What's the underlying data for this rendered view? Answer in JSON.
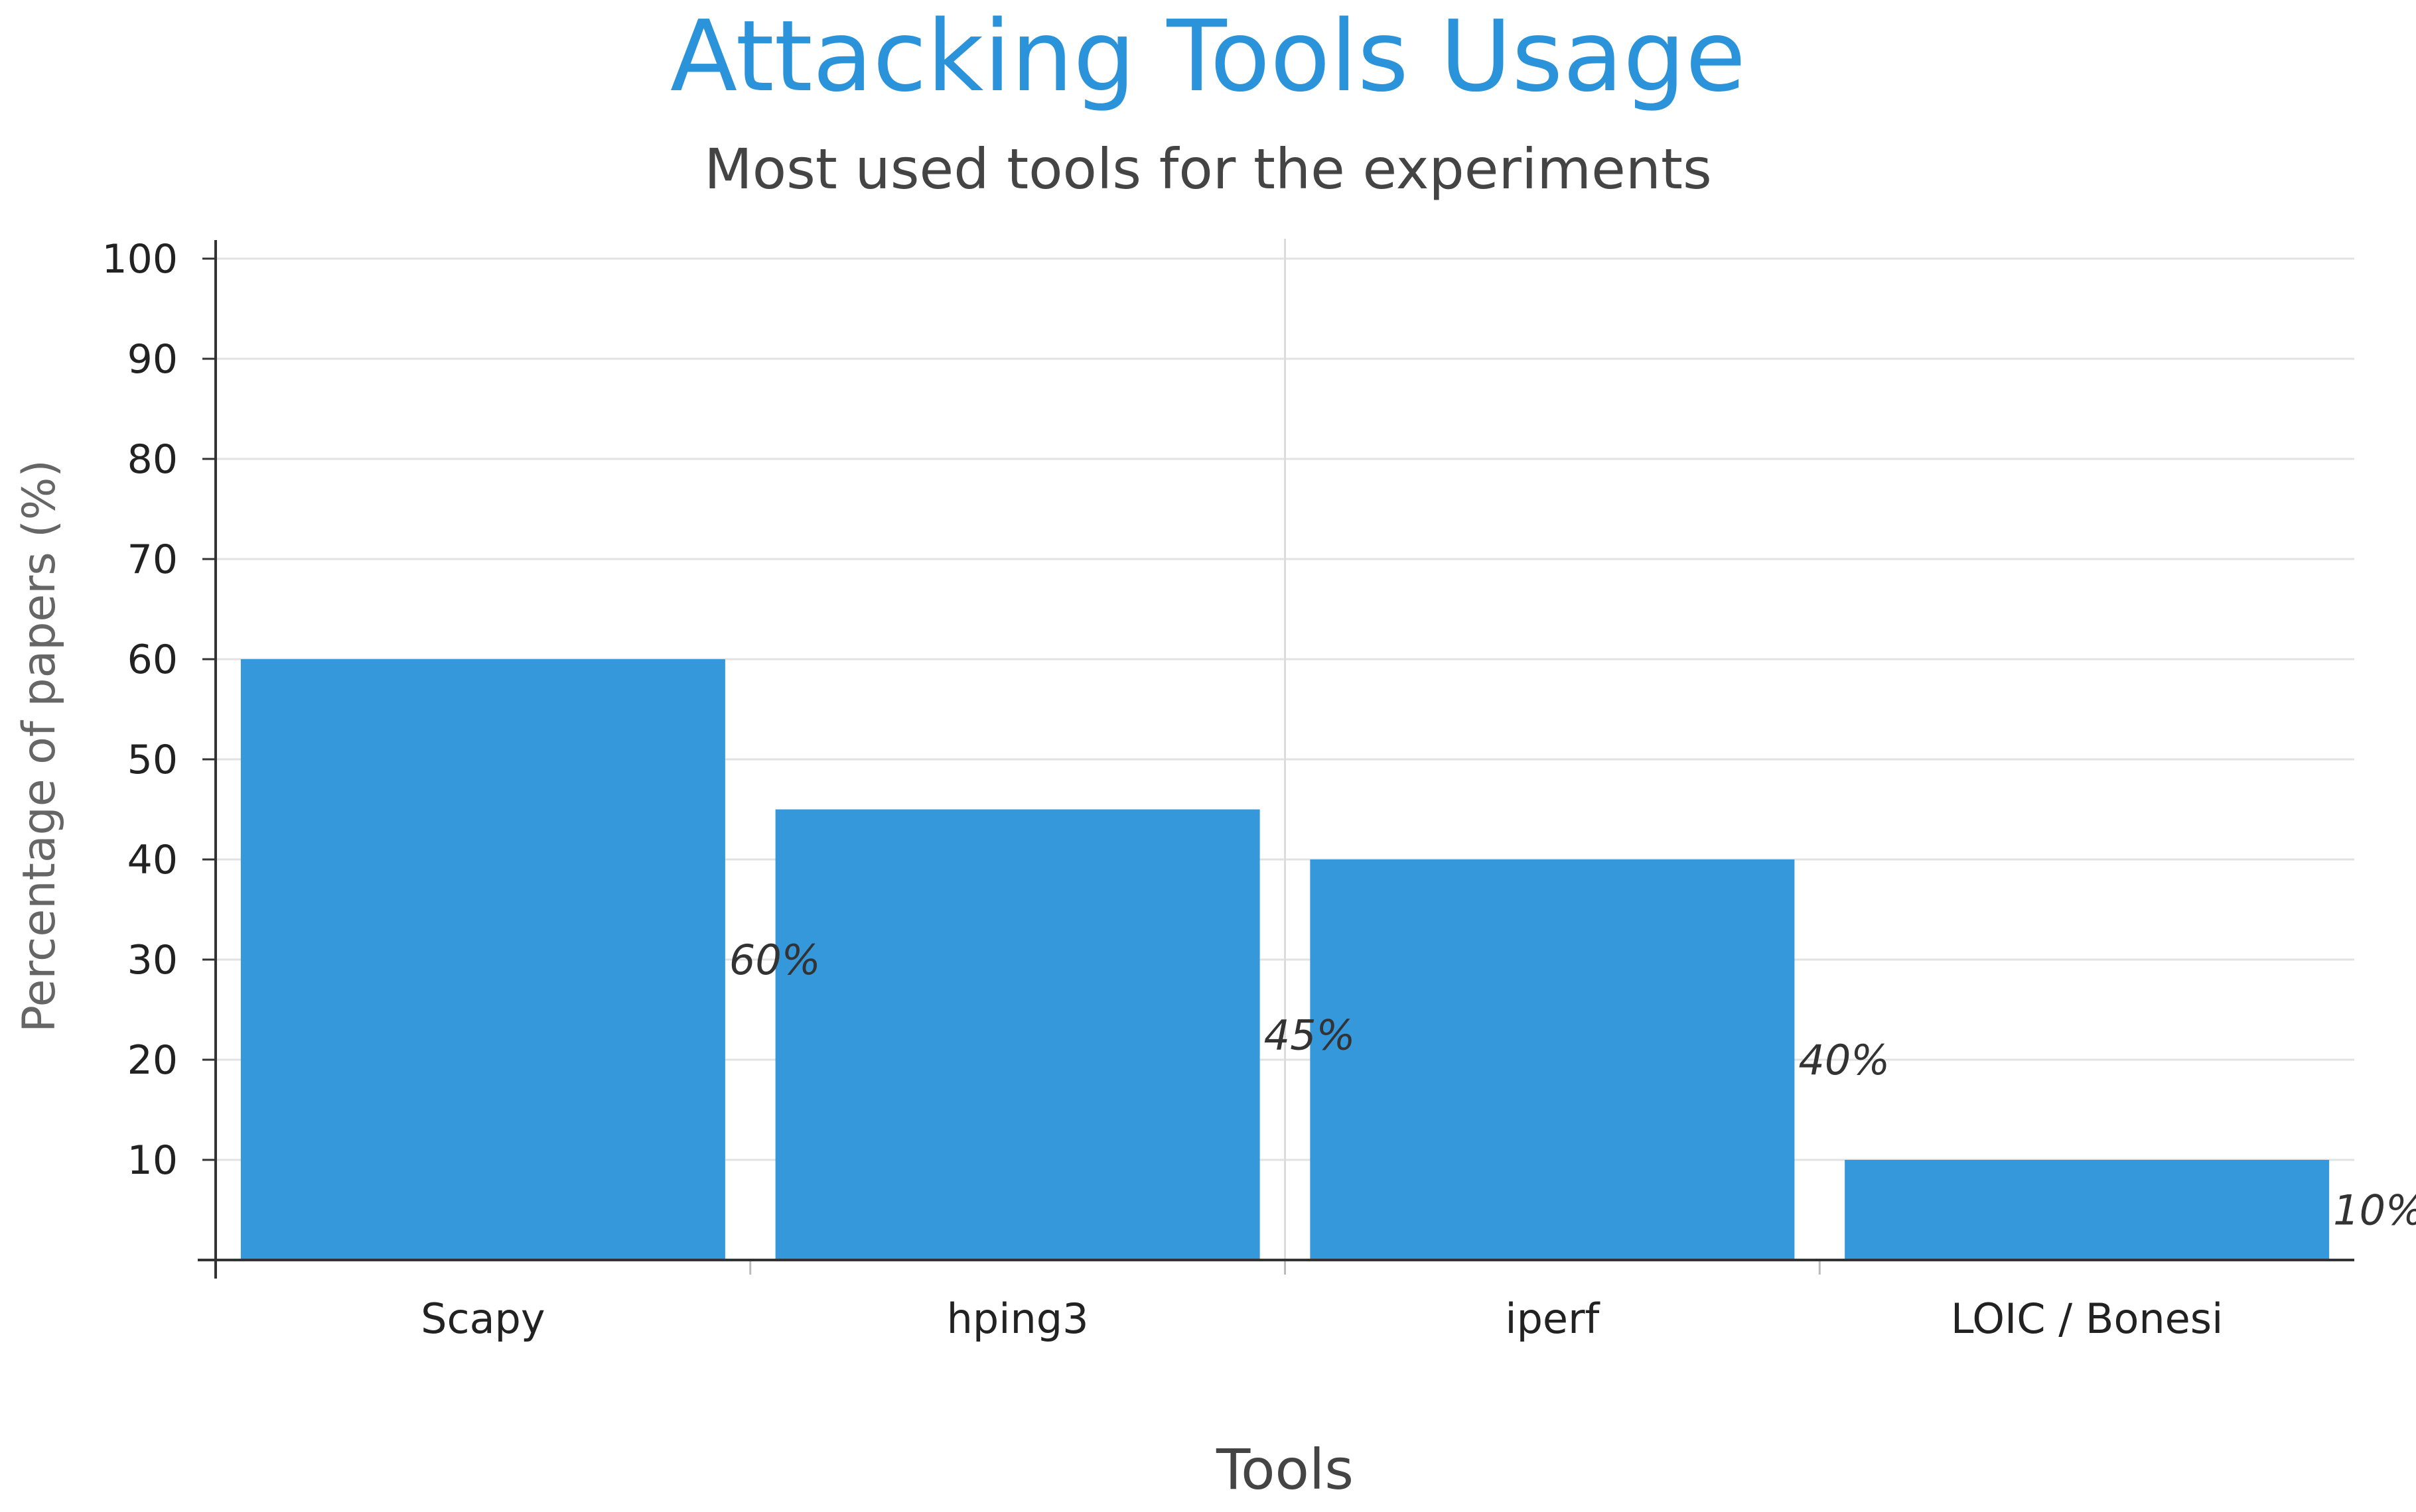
{
  "chart_data": {
    "type": "bar",
    "title": "Attacking Tools Usage",
    "subtitle": "Most used tools for the experiments",
    "xlabel": "Tools",
    "ylabel": "Percentage of papers (%)",
    "categories": [
      "Scapy",
      "hping3",
      "iperf",
      "LOIC / Bonesi"
    ],
    "values": [
      60,
      45,
      40,
      10
    ],
    "data_labels": [
      "60%",
      "45%",
      "40%",
      "10%"
    ],
    "ylim": [
      0,
      100
    ],
    "yticks": [
      "10",
      "20",
      "30",
      "40",
      "50",
      "60",
      "70",
      "80",
      "90",
      "100"
    ],
    "grid": true,
    "legend": "none",
    "colors": {
      "bar": "#3498db",
      "title": "#2b93d9",
      "grid": "#e2e2e2",
      "axis": "#333333"
    }
  }
}
